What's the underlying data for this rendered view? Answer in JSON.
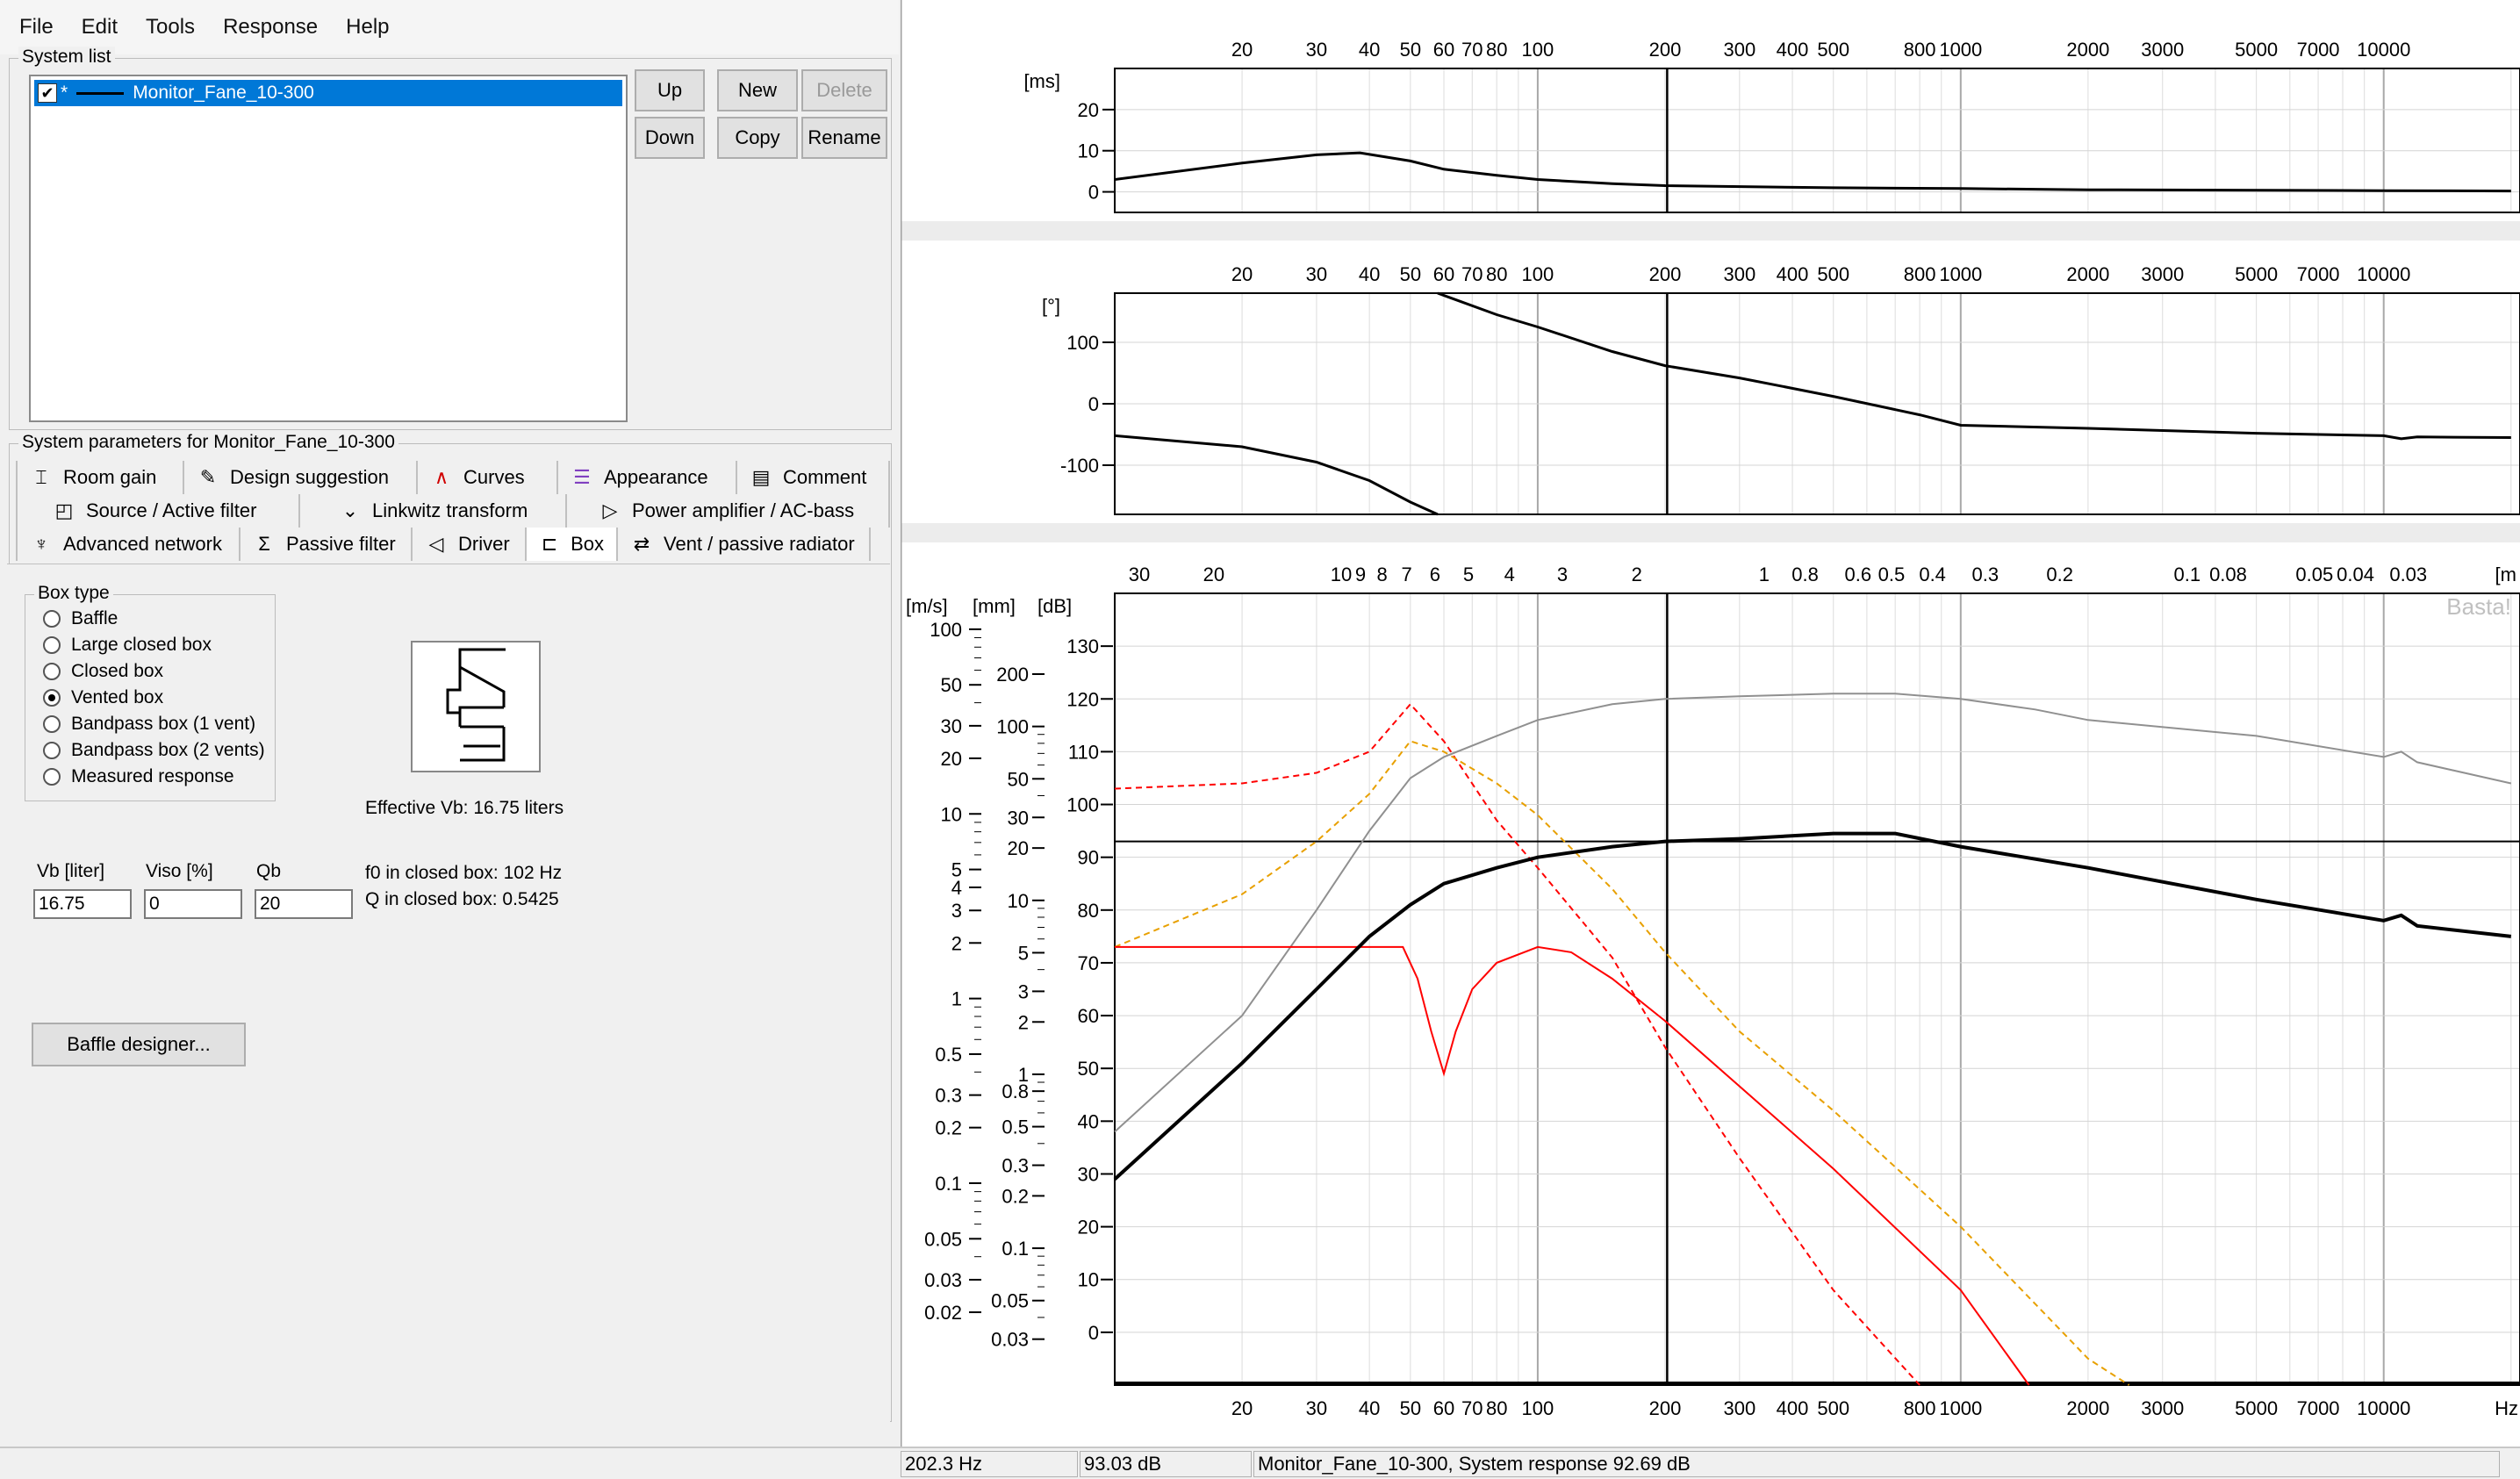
{
  "menu": [
    "File",
    "Edit",
    "Tools",
    "Response",
    "Help"
  ],
  "system_list": {
    "title": "System list",
    "items": [
      {
        "label": "Monitor_Fane_10-300",
        "checked": true,
        "prefix": "*"
      }
    ],
    "buttons": {
      "up": "Up",
      "new": "New",
      "delete": "Delete",
      "down": "Down",
      "copy": "Copy",
      "rename": "Rename"
    }
  },
  "params": {
    "title": "System parameters for Monitor_Fane_10-300",
    "tabs_row1": [
      {
        "label": "Room gain",
        "icon": "room-gain-icon"
      },
      {
        "label": "Design suggestion",
        "icon": "pencil-icon"
      },
      {
        "label": "Curves",
        "icon": "curves-icon"
      },
      {
        "label": "Appearance",
        "icon": "appearance-icon"
      },
      {
        "label": "Comment",
        "icon": "comment-icon"
      }
    ],
    "tabs_row2": [
      {
        "label": "Source / Active filter",
        "icon": "source-filter-icon"
      },
      {
        "label": "Linkwitz transform",
        "icon": "linkwitz-icon"
      },
      {
        "label": "Power amplifier / AC-bass",
        "icon": "amplifier-icon"
      }
    ],
    "tabs_row3": [
      {
        "label": "Advanced network",
        "icon": "network-icon"
      },
      {
        "label": "Passive filter",
        "icon": "passive-filter-icon"
      },
      {
        "label": "Driver",
        "icon": "driver-icon"
      },
      {
        "label": "Box",
        "icon": "box-icon",
        "active": true
      },
      {
        "label": "Vent / passive radiator",
        "icon": "vent-icon"
      }
    ]
  },
  "box": {
    "box_type_title": "Box type",
    "types": [
      {
        "label": "Baffle",
        "checked": false
      },
      {
        "label": "Large closed box",
        "checked": false
      },
      {
        "label": "Closed box",
        "checked": false
      },
      {
        "label": "Vented box",
        "checked": true
      },
      {
        "label": "Bandpass box (1 vent)",
        "checked": false
      },
      {
        "label": "Bandpass box (2 vents)",
        "checked": false
      },
      {
        "label": "Measured response",
        "checked": false
      }
    ],
    "effective_vb": "Effective Vb: 16.75 liters",
    "vb_label": "Vb [liter]",
    "vb_value": "16.75",
    "viso_label": "Viso [%]",
    "viso_value": "0",
    "qb_label": "Qb",
    "qb_value": "20",
    "f0_text": "f0 in closed box: 102 Hz",
    "q_text": "Q  in closed box: 0.5425",
    "baffle_designer": "Baffle designer..."
  },
  "charts": {
    "freq_ticks": [
      "20",
      "30",
      "40",
      "50",
      "60",
      "70",
      "80",
      "100",
      "200",
      "300",
      "400",
      "500",
      "800",
      "1000",
      "2000",
      "3000",
      "5000",
      "7000",
      "10000"
    ],
    "wavelength_ticks": [
      "30",
      "20",
      "10",
      "9",
      "8",
      "7",
      "6",
      "5",
      "4",
      "3",
      "2",
      "1",
      "0.8",
      "0.6",
      "0.5",
      "0.4",
      "0.3",
      "0.2",
      "0.1",
      "0.08",
      "0.05",
      "0.04",
      "0.03"
    ],
    "wavelength_unit": "[m",
    "hz_label": "Hz",
    "watermark": "Basta!",
    "delay_unit": "[ms]",
    "phase_unit": "[°]",
    "delay_ticks": [
      "20",
      "10",
      "0"
    ],
    "phase_ticks": [
      "100",
      "0",
      "-100"
    ],
    "db_unit": "[dB]",
    "db_ticks": [
      "130",
      "120",
      "110",
      "100",
      "90",
      "80",
      "70",
      "60",
      "50",
      "40",
      "30",
      "20",
      "10",
      "0"
    ],
    "mm_unit": "[mm]",
    "mm_ticks": [
      "200",
      "100",
      "50",
      "30",
      "20",
      "10",
      "5",
      "3",
      "2",
      "1",
      "0.8",
      "0.5",
      "0.3",
      "0.2",
      "0.1",
      "0.05",
      "0.03"
    ],
    "ms_unit": "[m/s]",
    "ms_ticks": [
      "100",
      "50",
      "30",
      "20",
      "10",
      "5",
      "4",
      "3",
      "2",
      "1",
      "0.5",
      "0.3",
      "0.2",
      "0.1",
      "0.05",
      "0.03",
      "0.02"
    ],
    "colors": {
      "system": "#000000",
      "gray": "#909090",
      "red": "#ff0000",
      "orange": "#e8a000",
      "grid": "#c8c8c8"
    }
  },
  "chart_data": [
    {
      "type": "line",
      "xlabel": "Hz",
      "ylabel": "[ms]",
      "xscale": "log",
      "xlim": [
        10,
        21000
      ],
      "ylim": [
        -5,
        30
      ],
      "series": [
        {
          "x": [
            10,
            20,
            30,
            38,
            50,
            60,
            80,
            100,
            150,
            200,
            500,
            1000,
            2000,
            10000,
            20000
          ],
          "y": [
            3,
            7,
            9,
            9.5,
            7.5,
            5.5,
            4,
            3,
            2,
            1.5,
            1,
            0.8,
            0.5,
            0.3,
            0.2
          ]
        }
      ]
    },
    {
      "type": "line",
      "xlabel": "Hz",
      "ylabel": "[°]",
      "xscale": "log",
      "xlim": [
        10,
        21000
      ],
      "ylim": [
        -180,
        180
      ],
      "series": [
        {
          "x": [
            10,
            20,
            30,
            40,
            50,
            58
          ],
          "y": [
            -52,
            -70,
            -95,
            -125,
            -160,
            -180
          ]
        },
        {
          "x": [
            58,
            80,
            100,
            150,
            200,
            300,
            500,
            800,
            1000,
            2000,
            5000,
            10000,
            11000,
            12000,
            20000
          ],
          "y": [
            180,
            145,
            125,
            85,
            62,
            42,
            12,
            -18,
            -35,
            -40,
            -48,
            -52,
            -57,
            -54,
            -55
          ]
        }
      ]
    },
    {
      "type": "line",
      "xlabel": "Hz",
      "ylabel": "[dB]",
      "xscale": "log",
      "xlim": [
        10,
        21000
      ],
      "ylim": [
        -10,
        140
      ],
      "series": [
        {
          "color": "#000000",
          "x": [
            10,
            20,
            30,
            40,
            50,
            60,
            80,
            100,
            150,
            200,
            300,
            500,
            700,
            1000,
            2000,
            5000,
            10000,
            11000,
            12000,
            20000
          ],
          "y": [
            29,
            51,
            65,
            75,
            81,
            85,
            88,
            90,
            92,
            93,
            93.5,
            94.5,
            94.5,
            92,
            88,
            82,
            78,
            79,
            77,
            75
          ]
        },
        {
          "color": "#909090",
          "x": [
            10,
            20,
            30,
            40,
            50,
            60,
            80,
            100,
            150,
            200,
            300,
            500,
            700,
            1000,
            1500,
            2000,
            5000,
            10000,
            11000,
            12000,
            20000
          ],
          "y": [
            38,
            60,
            80,
            95,
            105,
            109,
            113,
            116,
            119,
            120,
            120.5,
            121,
            121,
            120,
            118,
            116,
            113,
            109,
            110,
            108,
            104
          ]
        },
        {
          "color": "#ff0000",
          "x": [
            10,
            48,
            52,
            56,
            60,
            64,
            70,
            80,
            100,
            120,
            150,
            200,
            500,
            1000,
            1450
          ],
          "y": [
            73,
            73,
            67,
            57,
            49,
            57,
            65,
            70,
            73,
            72,
            67,
            59,
            31,
            8,
            -10
          ]
        },
        {
          "color": "#ff0000",
          "dash": true,
          "x": [
            10,
            20,
            30,
            40,
            50,
            60,
            80,
            100,
            150,
            200,
            300,
            500,
            800
          ],
          "y": [
            103,
            104,
            106,
            110,
            119,
            112,
            97,
            88,
            71,
            54,
            33,
            8,
            -10
          ]
        },
        {
          "color": "#e8a000",
          "dash": true,
          "x": [
            10,
            20,
            30,
            40,
            50,
            60,
            80,
            100,
            150,
            200,
            300,
            500,
            1000,
            2000,
            2500
          ],
          "y": [
            73,
            83,
            93,
            102,
            112,
            110,
            104,
            98,
            84,
            72,
            57,
            42,
            20,
            -5,
            -10
          ]
        }
      ]
    }
  ],
  "status": {
    "freq": "202.3 Hz",
    "db": "93.03 dB",
    "text": "Monitor_Fane_10-300, System response 92.69 dB"
  }
}
